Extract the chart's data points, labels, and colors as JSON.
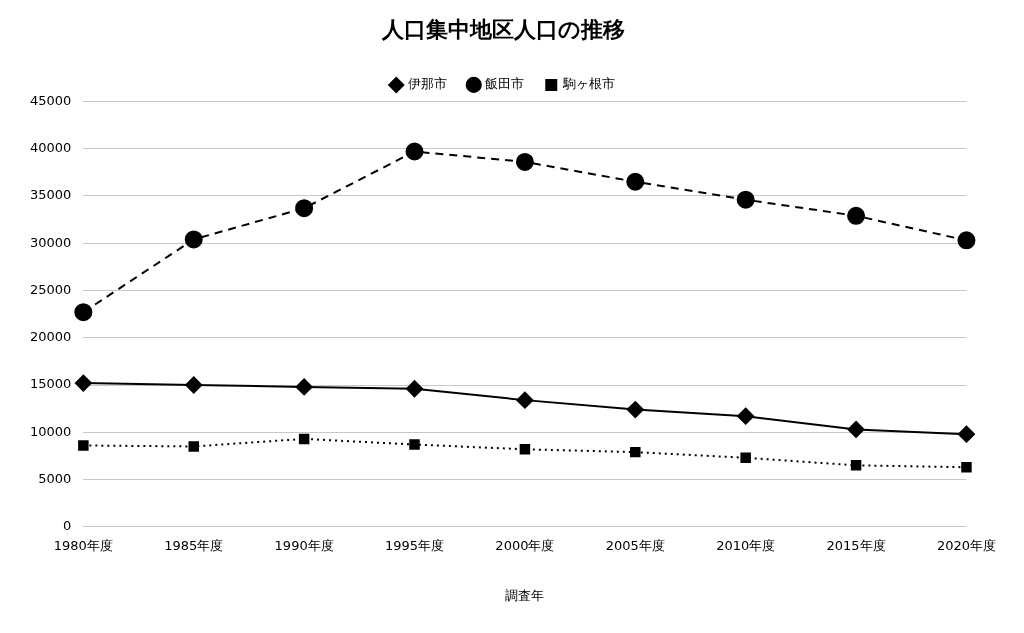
{
  "chart_data": {
    "type": "line",
    "title": "人口集中地区人口の推移",
    "xlabel": "調査年",
    "categories": [
      "1980年度",
      "1985年度",
      "1990年度",
      "1995年度",
      "2000年度",
      "2005年度",
      "2010年度",
      "2015年度",
      "2020年度"
    ],
    "series": [
      {
        "name": "伊那市",
        "color": "#000000",
        "marker": "diamond",
        "line_style": "solid",
        "values": [
          15200,
          15000,
          14800,
          14600,
          13400,
          12400,
          11700,
          10300,
          9800
        ]
      },
      {
        "name": "飯田市",
        "color": "#000000",
        "marker": "circle",
        "line_style": "dashed",
        "values": [
          22700,
          30400,
          33700,
          39700,
          38600,
          36500,
          34600,
          32900,
          30300
        ]
      },
      {
        "name": "駒ヶ根市",
        "color": "#000000",
        "marker": "square",
        "line_style": "dotted",
        "values": [
          8600,
          8500,
          9300,
          8700,
          8200,
          7900,
          7300,
          6500,
          6300
        ]
      }
    ],
    "ylim": [
      0,
      45000
    ],
    "yticks": [
      0,
      5000,
      10000,
      15000,
      20000,
      25000,
      30000,
      35000,
      40000,
      45000
    ],
    "grid": "y",
    "legend": "top"
  }
}
